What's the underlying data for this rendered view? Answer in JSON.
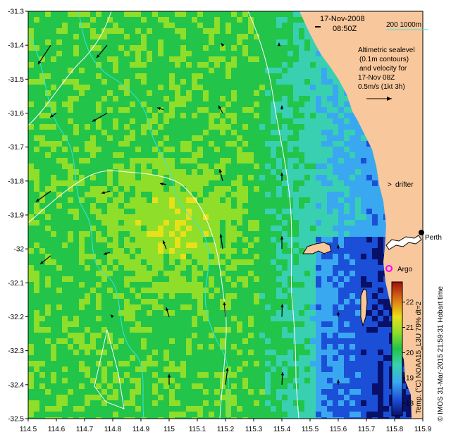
{
  "header": {
    "date": "17-Nov-2008",
    "time": "08:50Z",
    "depth_legend": "200  1000m"
  },
  "legend": {
    "line1": "Altimetric sealevel",
    "line2": "(0.1m contours)",
    "line3": "and velocity for",
    "line4": "17-Nov 08Z",
    "line5": "0.5m/s (1kt 3h)"
  },
  "labels": {
    "drifter": "drifter",
    "argo": "Argo",
    "perth": "Perth"
  },
  "colorbar": {
    "title": "Temp. (°C) NOAA15_L3U 79% dt=2",
    "ticks": [
      "18",
      "19",
      "20",
      "21",
      "22"
    ],
    "min": 17.5,
    "max": 22.8
  },
  "credit": "© IMOS 31-Mar-2015 21:59:31 Hobart time",
  "axes": {
    "x_ticks": [
      "114.5",
      "114.6",
      "114.7",
      "114.8",
      "114.9",
      "115",
      "115.1",
      "115.2",
      "115.3",
      "115.4",
      "115.5",
      "115.6",
      "115.7",
      "115.8",
      "115.9"
    ],
    "y_ticks": [
      "-31.3",
      "-31.4",
      "-31.5",
      "-31.6",
      "-31.7",
      "-31.8",
      "-31.9",
      "-32",
      "-32.1",
      "-32.2",
      "-32.3",
      "-32.4",
      "-32.5"
    ],
    "x_range": [
      114.5,
      115.9
    ],
    "y_range": [
      -32.5,
      -31.3
    ]
  },
  "colors": {
    "land": "#f8c79c",
    "depth_contour": "#33e6e6",
    "sealevel_contour": "#ffffff",
    "drifter_marker": "#ff00ff",
    "argo_marker": "#ff00ff"
  },
  "velocity_vectors": [
    {
      "lon": 114.58,
      "lat": -31.4,
      "u": -0.3,
      "v": -0.45
    },
    {
      "lon": 114.78,
      "lat": -31.4,
      "u": -0.25,
      "v": -0.3
    },
    {
      "lon": 114.6,
      "lat": -31.6,
      "u": -0.15,
      "v": -0.1
    },
    {
      "lon": 114.78,
      "lat": -31.6,
      "u": -0.35,
      "v": -0.2
    },
    {
      "lon": 114.98,
      "lat": -31.59,
      "u": -0.15,
      "v": 0.05
    },
    {
      "lon": 114.58,
      "lat": -31.83,
      "u": -0.35,
      "v": -0.25
    },
    {
      "lon": 114.79,
      "lat": -31.83,
      "u": -0.2,
      "v": -0.05
    },
    {
      "lon": 114.99,
      "lat": -31.81,
      "u": -0.15,
      "v": 0.02
    },
    {
      "lon": 114.58,
      "lat": -32.02,
      "u": -0.25,
      "v": -0.2
    },
    {
      "lon": 114.79,
      "lat": -32.01,
      "u": -0.15,
      "v": -0.05
    },
    {
      "lon": 114.99,
      "lat": -32.0,
      "u": -0.08,
      "v": 0.2
    },
    {
      "lon": 115.19,
      "lat": -32.0,
      "u": -0.05,
      "v": 0.35
    },
    {
      "lon": 115.4,
      "lat": -32.0,
      "u": 0.0,
      "v": 0.3
    },
    {
      "lon": 115.19,
      "lat": -31.8,
      "u": -0.07,
      "v": 0.28
    },
    {
      "lon": 115.4,
      "lat": -31.8,
      "u": 0.0,
      "v": 0.2
    },
    {
      "lon": 115.19,
      "lat": -31.6,
      "u": -0.1,
      "v": 0.18
    },
    {
      "lon": 115.4,
      "lat": -31.59,
      "u": 0.0,
      "v": 0.1
    },
    {
      "lon": 115.19,
      "lat": -31.4,
      "u": -0.03,
      "v": 0.05
    },
    {
      "lon": 115.39,
      "lat": -31.4,
      "u": 0.0,
      "v": 0.06
    },
    {
      "lon": 115.0,
      "lat": -32.2,
      "u": -0.07,
      "v": 0.22
    },
    {
      "lon": 115.2,
      "lat": -32.2,
      "u": -0.03,
      "v": 0.35
    },
    {
      "lon": 115.4,
      "lat": -32.2,
      "u": 0.01,
      "v": 0.3
    },
    {
      "lon": 115.2,
      "lat": -32.4,
      "u": 0.05,
      "v": 0.4
    },
    {
      "lon": 115.4,
      "lat": -32.4,
      "u": 0.02,
      "v": 0.3
    },
    {
      "lon": 115.0,
      "lat": -32.4,
      "u": 0.0,
      "v": 0.25
    },
    {
      "lon": 114.8,
      "lat": -32.2,
      "u": -0.05,
      "v": 0.05
    },
    {
      "lon": 115.6,
      "lat": -32.2,
      "u": 0.0,
      "v": 0.12
    },
    {
      "lon": 115.6,
      "lat": -32.4,
      "u": 0.0,
      "v": 0.12
    },
    {
      "lon": 115.6,
      "lat": -32.0,
      "u": 0.0,
      "v": 0.1
    }
  ]
}
